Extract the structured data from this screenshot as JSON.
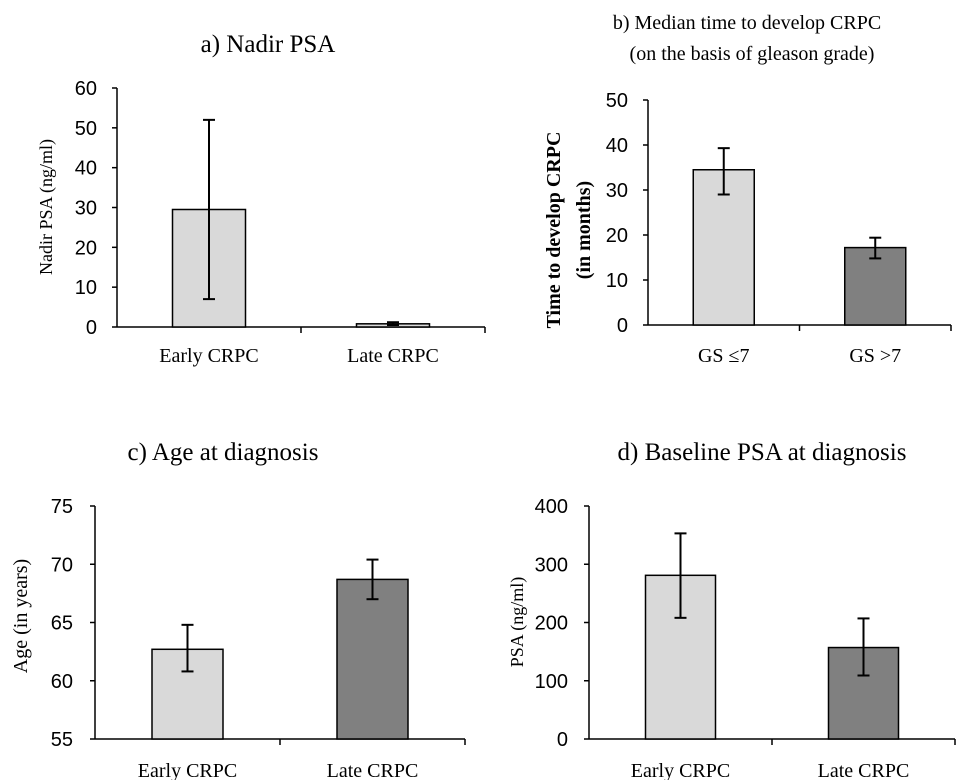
{
  "chart_data": [
    {
      "type": "bar",
      "title": "a) Nadir PSA",
      "subtitle": "",
      "ylabel": "Nadir PSA (ng/ml)",
      "xlabel": "",
      "categories": [
        "Early CRPC",
        "Late CRPC"
      ],
      "values": [
        29.5,
        0.8
      ],
      "error_low": [
        7,
        0.5
      ],
      "error_high": [
        52,
        1.2
      ],
      "ylim": [
        0,
        60
      ],
      "yticks": [
        "0",
        "10",
        "20",
        "30",
        "40",
        "50",
        "60"
      ],
      "bar_colors": [
        "#d9d9d9",
        "#d9d9d9"
      ],
      "grid": false
    },
    {
      "type": "bar",
      "title": "b)  Median time to develop CRPC",
      "subtitle": "(on the basis of gleason grade)",
      "ylabel": "Time to develop CRPC",
      "ylabel2": "(in months)",
      "xlabel": "",
      "categories": [
        "GS ≤7",
        "GS >7"
      ],
      "values": [
        34.5,
        17.2
      ],
      "error_low": [
        29,
        14.8
      ],
      "error_high": [
        39.3,
        19.4
      ],
      "ylim": [
        0,
        50
      ],
      "yticks": [
        "0",
        "10",
        "20",
        "30",
        "40",
        "50"
      ],
      "bar_colors": [
        "#d9d9d9",
        "#808080"
      ],
      "grid": false
    },
    {
      "type": "bar",
      "title": "c) Age at diagnosis",
      "subtitle": "",
      "ylabel": "Age (in years)",
      "xlabel": "",
      "categories": [
        "Early CRPC",
        "Late CRPC"
      ],
      "values": [
        62.7,
        68.7
      ],
      "error_low": [
        60.8,
        67.0
      ],
      "error_high": [
        64.8,
        70.4
      ],
      "ylim": [
        55,
        75
      ],
      "yticks": [
        "55",
        "60",
        "65",
        "70",
        "75"
      ],
      "bar_colors": [
        "#d9d9d9",
        "#808080"
      ],
      "grid": false
    },
    {
      "type": "bar",
      "title": "d) Baseline PSA at diagnosis",
      "subtitle": "",
      "ylabel": "PSA (ng/ml)",
      "xlabel": "",
      "categories": [
        "Early CRPC",
        "Late CRPC"
      ],
      "values": [
        281,
        157
      ],
      "error_low": [
        208,
        109
      ],
      "error_high": [
        353,
        207
      ],
      "ylim": [
        0,
        400
      ],
      "yticks": [
        "0",
        "100",
        "200",
        "300",
        "400"
      ],
      "bar_colors": [
        "#d9d9d9",
        "#808080"
      ],
      "grid": false
    }
  ]
}
